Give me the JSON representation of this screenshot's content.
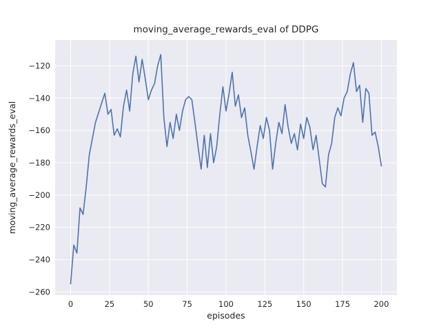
{
  "chart_data": {
    "type": "line",
    "title": "moving_average_rewards_eval of DDPG",
    "xlabel": "episodes",
    "ylabel": "moving_average_rewards_eval",
    "xlim": [
      -10,
      210
    ],
    "ylim": [
      -262,
      -104
    ],
    "xticks": [
      0,
      25,
      50,
      75,
      100,
      125,
      150,
      175,
      200
    ],
    "yticks": [
      -260,
      -240,
      -220,
      -200,
      -180,
      -160,
      -140,
      -120
    ],
    "grid": true,
    "legend": null,
    "style": {
      "figure_bg": "#ffffff",
      "axes_bg": "#eaeaf2",
      "grid_color": "#ffffff",
      "text_color": "#262626",
      "line_color": "#4c72b0",
      "line_width": 1.6
    },
    "series": [
      {
        "name": "moving_average_rewards_eval",
        "x": [
          0,
          2,
          4,
          6,
          8,
          10,
          12,
          14,
          16,
          18,
          20,
          22,
          24,
          26,
          28,
          30,
          32,
          34,
          36,
          38,
          40,
          42,
          44,
          46,
          48,
          50,
          52,
          54,
          56,
          58,
          60,
          62,
          64,
          66,
          68,
          70,
          72,
          74,
          76,
          78,
          80,
          82,
          84,
          86,
          88,
          90,
          92,
          94,
          96,
          98,
          100,
          102,
          104,
          106,
          108,
          110,
          112,
          114,
          116,
          118,
          120,
          122,
          124,
          126,
          128,
          130,
          132,
          134,
          136,
          138,
          140,
          142,
          144,
          146,
          148,
          150,
          152,
          154,
          156,
          158,
          160,
          162,
          164,
          166,
          168,
          170,
          172,
          174,
          176,
          178,
          180,
          182,
          184,
          186,
          188,
          190,
          192,
          194,
          196,
          198,
          200
        ],
        "y": [
          -255,
          -231,
          -236,
          -208,
          -212,
          -195,
          -175,
          -165,
          -155,
          -149,
          -143,
          -137,
          -150,
          -147,
          -163,
          -159,
          -164,
          -145,
          -135,
          -148,
          -125,
          -114,
          -130,
          -116,
          -128,
          -141,
          -135,
          -131,
          -120,
          -113,
          -152,
          -170,
          -155,
          -165,
          -150,
          -160,
          -148,
          -141,
          -139,
          -141,
          -155,
          -170,
          -184,
          -163,
          -183,
          -162,
          -180,
          -170,
          -150,
          -133,
          -148,
          -137,
          -124,
          -145,
          -138,
          -152,
          -146,
          -163,
          -173,
          -184,
          -170,
          -157,
          -165,
          -152,
          -160,
          -184,
          -168,
          -155,
          -162,
          -144,
          -158,
          -168,
          -162,
          -172,
          -156,
          -165,
          -152,
          -158,
          -172,
          -163,
          -178,
          -193,
          -195,
          -175,
          -168,
          -152,
          -146,
          -151,
          -140,
          -136,
          -125,
          -118,
          -136,
          -132,
          -155,
          -134,
          -137,
          -163,
          -161,
          -170,
          -182
        ]
      }
    ]
  }
}
